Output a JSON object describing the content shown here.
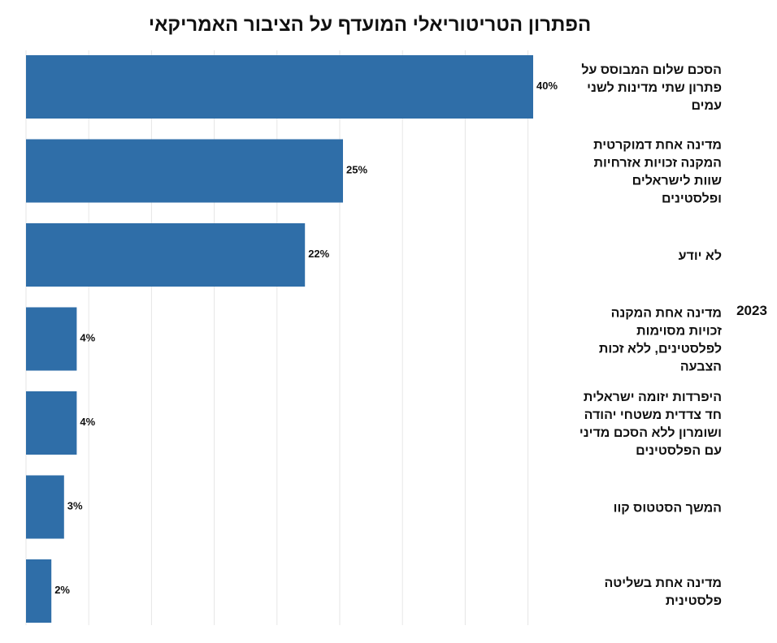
{
  "chart_data": {
    "type": "bar",
    "orientation": "horizontal",
    "title": "הפתרון הטריטוריאלי המועדף על הציבור האמריקאי",
    "group_label": "2023",
    "categories": [
      [
        "הסכם שלום המבוסס על",
        "פתרון שתי מדינות לשני",
        "עמים"
      ],
      [
        "מדינה אחת דמוקרטית",
        "המקנה זכויות אזרחיות",
        "שוות לישראלים",
        "ופלסטינים"
      ],
      [
        "לא יודע"
      ],
      [
        "מדינה אחת המקנה",
        "זכויות מסוימות",
        "לפלסטינים,  ללא זכות",
        "הצבעה"
      ],
      [
        "היפרדות יזומה ישראלית",
        "חד צדדית משטחי יהודה",
        "ושומרון ללא הסכם מדיני",
        "עם הפלסטינים"
      ],
      [
        "המשך הסטטוס קוו"
      ],
      [
        "מדינה אחת בשליטה",
        "פלסטינית"
      ]
    ],
    "values": [
      40,
      25,
      22,
      4,
      4,
      3,
      2
    ],
    "value_labels": [
      "40%",
      "25%",
      "22%",
      "4%",
      "4%",
      "3%",
      "2%"
    ],
    "xlim": [
      0,
      40
    ],
    "grid": true,
    "legend": "none",
    "bar_color": "#2f6ea8"
  }
}
